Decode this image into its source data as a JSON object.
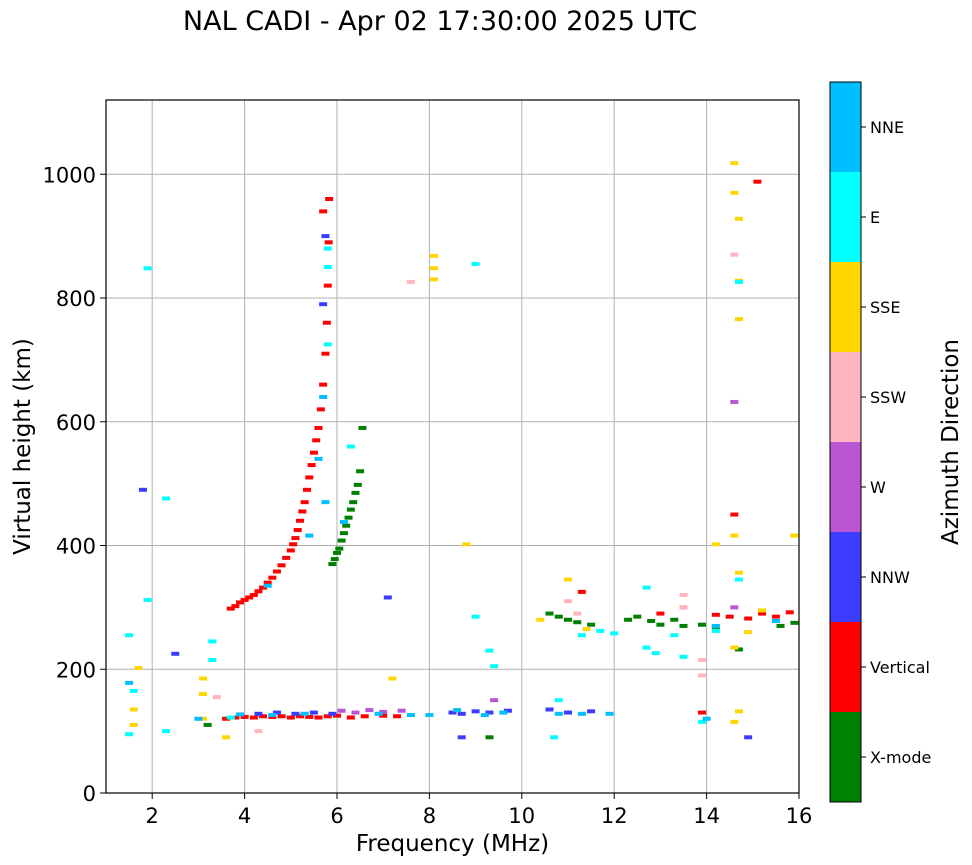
{
  "chart_data": {
    "type": "scatter",
    "title": "NAL CADI - Apr 02 17:30:00 2025 UTC",
    "xlabel": "Frequency (MHz)",
    "ylabel": "Virtual height (km)",
    "xlim": [
      1,
      16
    ],
    "ylim": [
      0,
      1120
    ],
    "xticks": [
      2,
      4,
      6,
      8,
      10,
      12,
      14,
      16
    ],
    "yticks": [
      0,
      200,
      400,
      600,
      800,
      1000
    ],
    "grid": true,
    "colorbar": {
      "label": "Azimuth Direction",
      "categories": [
        {
          "name": "X-mode",
          "color": "#008000"
        },
        {
          "name": "Vertical",
          "color": "#ff0000"
        },
        {
          "name": "NNW",
          "color": "#3c3cff"
        },
        {
          "name": "W",
          "color": "#ba55d3"
        },
        {
          "name": "SSW",
          "color": "#ffb6c1"
        },
        {
          "name": "SSE",
          "color": "#ffd700"
        },
        {
          "name": "E",
          "color": "#00ffff"
        },
        {
          "name": "NNE",
          "color": "#00bfff"
        }
      ]
    },
    "series": [
      {
        "name": "X-mode",
        "points": [
          [
            5.9,
            370
          ],
          [
            5.95,
            378
          ],
          [
            6.0,
            388
          ],
          [
            6.05,
            395
          ],
          [
            6.1,
            408
          ],
          [
            6.15,
            420
          ],
          [
            6.2,
            432
          ],
          [
            6.25,
            445
          ],
          [
            6.3,
            458
          ],
          [
            6.35,
            470
          ],
          [
            6.4,
            485
          ],
          [
            6.45,
            498
          ],
          [
            6.5,
            520
          ],
          [
            6.55,
            590
          ],
          [
            10.6,
            290
          ],
          [
            10.8,
            285
          ],
          [
            11.0,
            280
          ],
          [
            11.2,
            276
          ],
          [
            11.5,
            272
          ],
          [
            12.3,
            280
          ],
          [
            12.5,
            285
          ],
          [
            12.8,
            278
          ],
          [
            13.0,
            272
          ],
          [
            13.3,
            280
          ],
          [
            13.5,
            270
          ],
          [
            13.9,
            272
          ],
          [
            14.2,
            268
          ],
          [
            15.6,
            270
          ],
          [
            15.9,
            275
          ],
          [
            9.3,
            90
          ],
          [
            14.7,
            232
          ],
          [
            3.2,
            110
          ]
        ]
      },
      {
        "name": "Vertical",
        "points": [
          [
            3.7,
            298
          ],
          [
            3.8,
            302
          ],
          [
            3.9,
            308
          ],
          [
            4.0,
            312
          ],
          [
            4.1,
            316
          ],
          [
            4.2,
            320
          ],
          [
            4.3,
            326
          ],
          [
            4.4,
            332
          ],
          [
            4.5,
            340
          ],
          [
            4.6,
            348
          ],
          [
            4.7,
            358
          ],
          [
            4.8,
            368
          ],
          [
            4.9,
            380
          ],
          [
            5.0,
            392
          ],
          [
            5.05,
            402
          ],
          [
            5.1,
            412
          ],
          [
            5.15,
            425
          ],
          [
            5.2,
            440
          ],
          [
            5.25,
            455
          ],
          [
            5.3,
            470
          ],
          [
            5.35,
            490
          ],
          [
            5.4,
            510
          ],
          [
            5.45,
            530
          ],
          [
            5.5,
            550
          ],
          [
            5.55,
            570
          ],
          [
            5.6,
            590
          ],
          [
            5.65,
            620
          ],
          [
            5.7,
            660
          ],
          [
            5.75,
            710
          ],
          [
            5.78,
            760
          ],
          [
            5.8,
            820
          ],
          [
            5.82,
            890
          ],
          [
            5.83,
            960
          ],
          [
            3.6,
            120
          ],
          [
            3.8,
            122
          ],
          [
            4.0,
            123
          ],
          [
            4.2,
            122
          ],
          [
            4.4,
            124
          ],
          [
            4.6,
            123
          ],
          [
            4.8,
            124
          ],
          [
            5.0,
            122
          ],
          [
            5.2,
            124
          ],
          [
            5.4,
            123
          ],
          [
            5.6,
            122
          ],
          [
            5.8,
            124
          ],
          [
            6.0,
            125
          ],
          [
            6.3,
            122
          ],
          [
            6.6,
            124
          ],
          [
            7.0,
            125
          ],
          [
            7.3,
            124
          ],
          [
            13.9,
            130
          ],
          [
            14.2,
            288
          ],
          [
            14.5,
            285
          ],
          [
            14.9,
            282
          ],
          [
            15.2,
            290
          ],
          [
            15.5,
            285
          ],
          [
            15.8,
            292
          ],
          [
            13.0,
            290
          ],
          [
            13.5,
            300
          ],
          [
            11.3,
            325
          ],
          [
            5.7,
            940
          ],
          [
            14.6,
            450
          ],
          [
            15.1,
            988
          ]
        ]
      },
      {
        "name": "NNW",
        "points": [
          [
            4.3,
            128
          ],
          [
            4.7,
            130
          ],
          [
            5.1,
            128
          ],
          [
            5.5,
            130
          ],
          [
            5.9,
            128
          ],
          [
            8.5,
            130
          ],
          [
            8.7,
            128
          ],
          [
            9.0,
            132
          ],
          [
            9.3,
            130
          ],
          [
            9.7,
            133
          ],
          [
            10.6,
            135
          ],
          [
            11.0,
            130
          ],
          [
            11.5,
            132
          ],
          [
            7.1,
            316
          ],
          [
            2.5,
            225
          ],
          [
            1.8,
            490
          ],
          [
            14.9,
            90
          ],
          [
            8.7,
            90
          ],
          [
            5.75,
            900
          ],
          [
            5.7,
            790
          ]
        ]
      },
      {
        "name": "W",
        "points": [
          [
            6.1,
            133
          ],
          [
            6.4,
            130
          ],
          [
            6.7,
            134
          ],
          [
            7.0,
            131
          ],
          [
            7.4,
            133
          ],
          [
            14.6,
            632
          ],
          [
            14.6,
            300
          ],
          [
            9.4,
            150
          ]
        ]
      },
      {
        "name": "SSW",
        "points": [
          [
            13.9,
            190
          ],
          [
            13.9,
            215
          ],
          [
            13.5,
            320
          ],
          [
            13.5,
            300
          ],
          [
            14.6,
            870
          ],
          [
            7.6,
            826
          ],
          [
            11.2,
            290
          ],
          [
            11.0,
            310
          ],
          [
            3.4,
            155
          ],
          [
            4.3,
            100
          ]
        ]
      },
      {
        "name": "SSE",
        "points": [
          [
            1.6,
            110
          ],
          [
            1.6,
            135
          ],
          [
            3.1,
            120
          ],
          [
            3.1,
            160
          ],
          [
            3.1,
            185
          ],
          [
            8.1,
            868
          ],
          [
            8.1,
            848
          ],
          [
            8.1,
            830
          ],
          [
            8.8,
            402
          ],
          [
            14.6,
            1018
          ],
          [
            14.6,
            970
          ],
          [
            14.7,
            928
          ],
          [
            14.7,
            828
          ],
          [
            14.7,
            766
          ],
          [
            14.6,
            416
          ],
          [
            14.2,
            402
          ],
          [
            14.7,
            356
          ],
          [
            14.6,
            235
          ],
          [
            14.9,
            260
          ],
          [
            15.2,
            295
          ],
          [
            15.9,
            416
          ],
          [
            14.6,
            115
          ],
          [
            14.7,
            132
          ],
          [
            7.2,
            185
          ],
          [
            1.7,
            202
          ],
          [
            11.0,
            345
          ],
          [
            10.4,
            280
          ],
          [
            11.4,
            265
          ],
          [
            3.6,
            90
          ]
        ]
      },
      {
        "name": "E",
        "points": [
          [
            1.5,
            95
          ],
          [
            1.6,
            165
          ],
          [
            1.5,
            255
          ],
          [
            2.3,
            100
          ],
          [
            3.3,
            245
          ],
          [
            3.3,
            215
          ],
          [
            5.8,
            880
          ],
          [
            5.8,
            850
          ],
          [
            5.8,
            725
          ],
          [
            6.3,
            560
          ],
          [
            9.0,
            855
          ],
          [
            9.0,
            285
          ],
          [
            9.3,
            230
          ],
          [
            9.4,
            205
          ],
          [
            10.8,
            150
          ],
          [
            10.7,
            90
          ],
          [
            11.3,
            255
          ],
          [
            11.7,
            262
          ],
          [
            12.0,
            258
          ],
          [
            12.7,
            332
          ],
          [
            12.7,
            235
          ],
          [
            12.9,
            226
          ],
          [
            13.3,
            255
          ],
          [
            13.5,
            220
          ],
          [
            14.2,
            262
          ],
          [
            14.7,
            345
          ],
          [
            14.7,
            826
          ],
          [
            13.9,
            115
          ],
          [
            2.3,
            476
          ],
          [
            1.9,
            848
          ],
          [
            1.9,
            312
          ],
          [
            3.7,
            122
          ]
        ]
      },
      {
        "name": "NNE",
        "points": [
          [
            1.5,
            178
          ],
          [
            3.0,
            120
          ],
          [
            3.9,
            127
          ],
          [
            4.6,
            126
          ],
          [
            5.3,
            128
          ],
          [
            6.9,
            128
          ],
          [
            7.6,
            126
          ],
          [
            8.0,
            126
          ],
          [
            8.6,
            134
          ],
          [
            9.2,
            126
          ],
          [
            9.6,
            130
          ],
          [
            10.8,
            128
          ],
          [
            11.3,
            128
          ],
          [
            11.9,
            128
          ],
          [
            14.0,
            120
          ],
          [
            5.7,
            640
          ],
          [
            5.75,
            470
          ],
          [
            5.6,
            540
          ],
          [
            6.15,
            438
          ],
          [
            14.2,
            270
          ],
          [
            15.5,
            278
          ],
          [
            5.4,
            416
          ],
          [
            4.5,
            335
          ]
        ]
      }
    ]
  }
}
